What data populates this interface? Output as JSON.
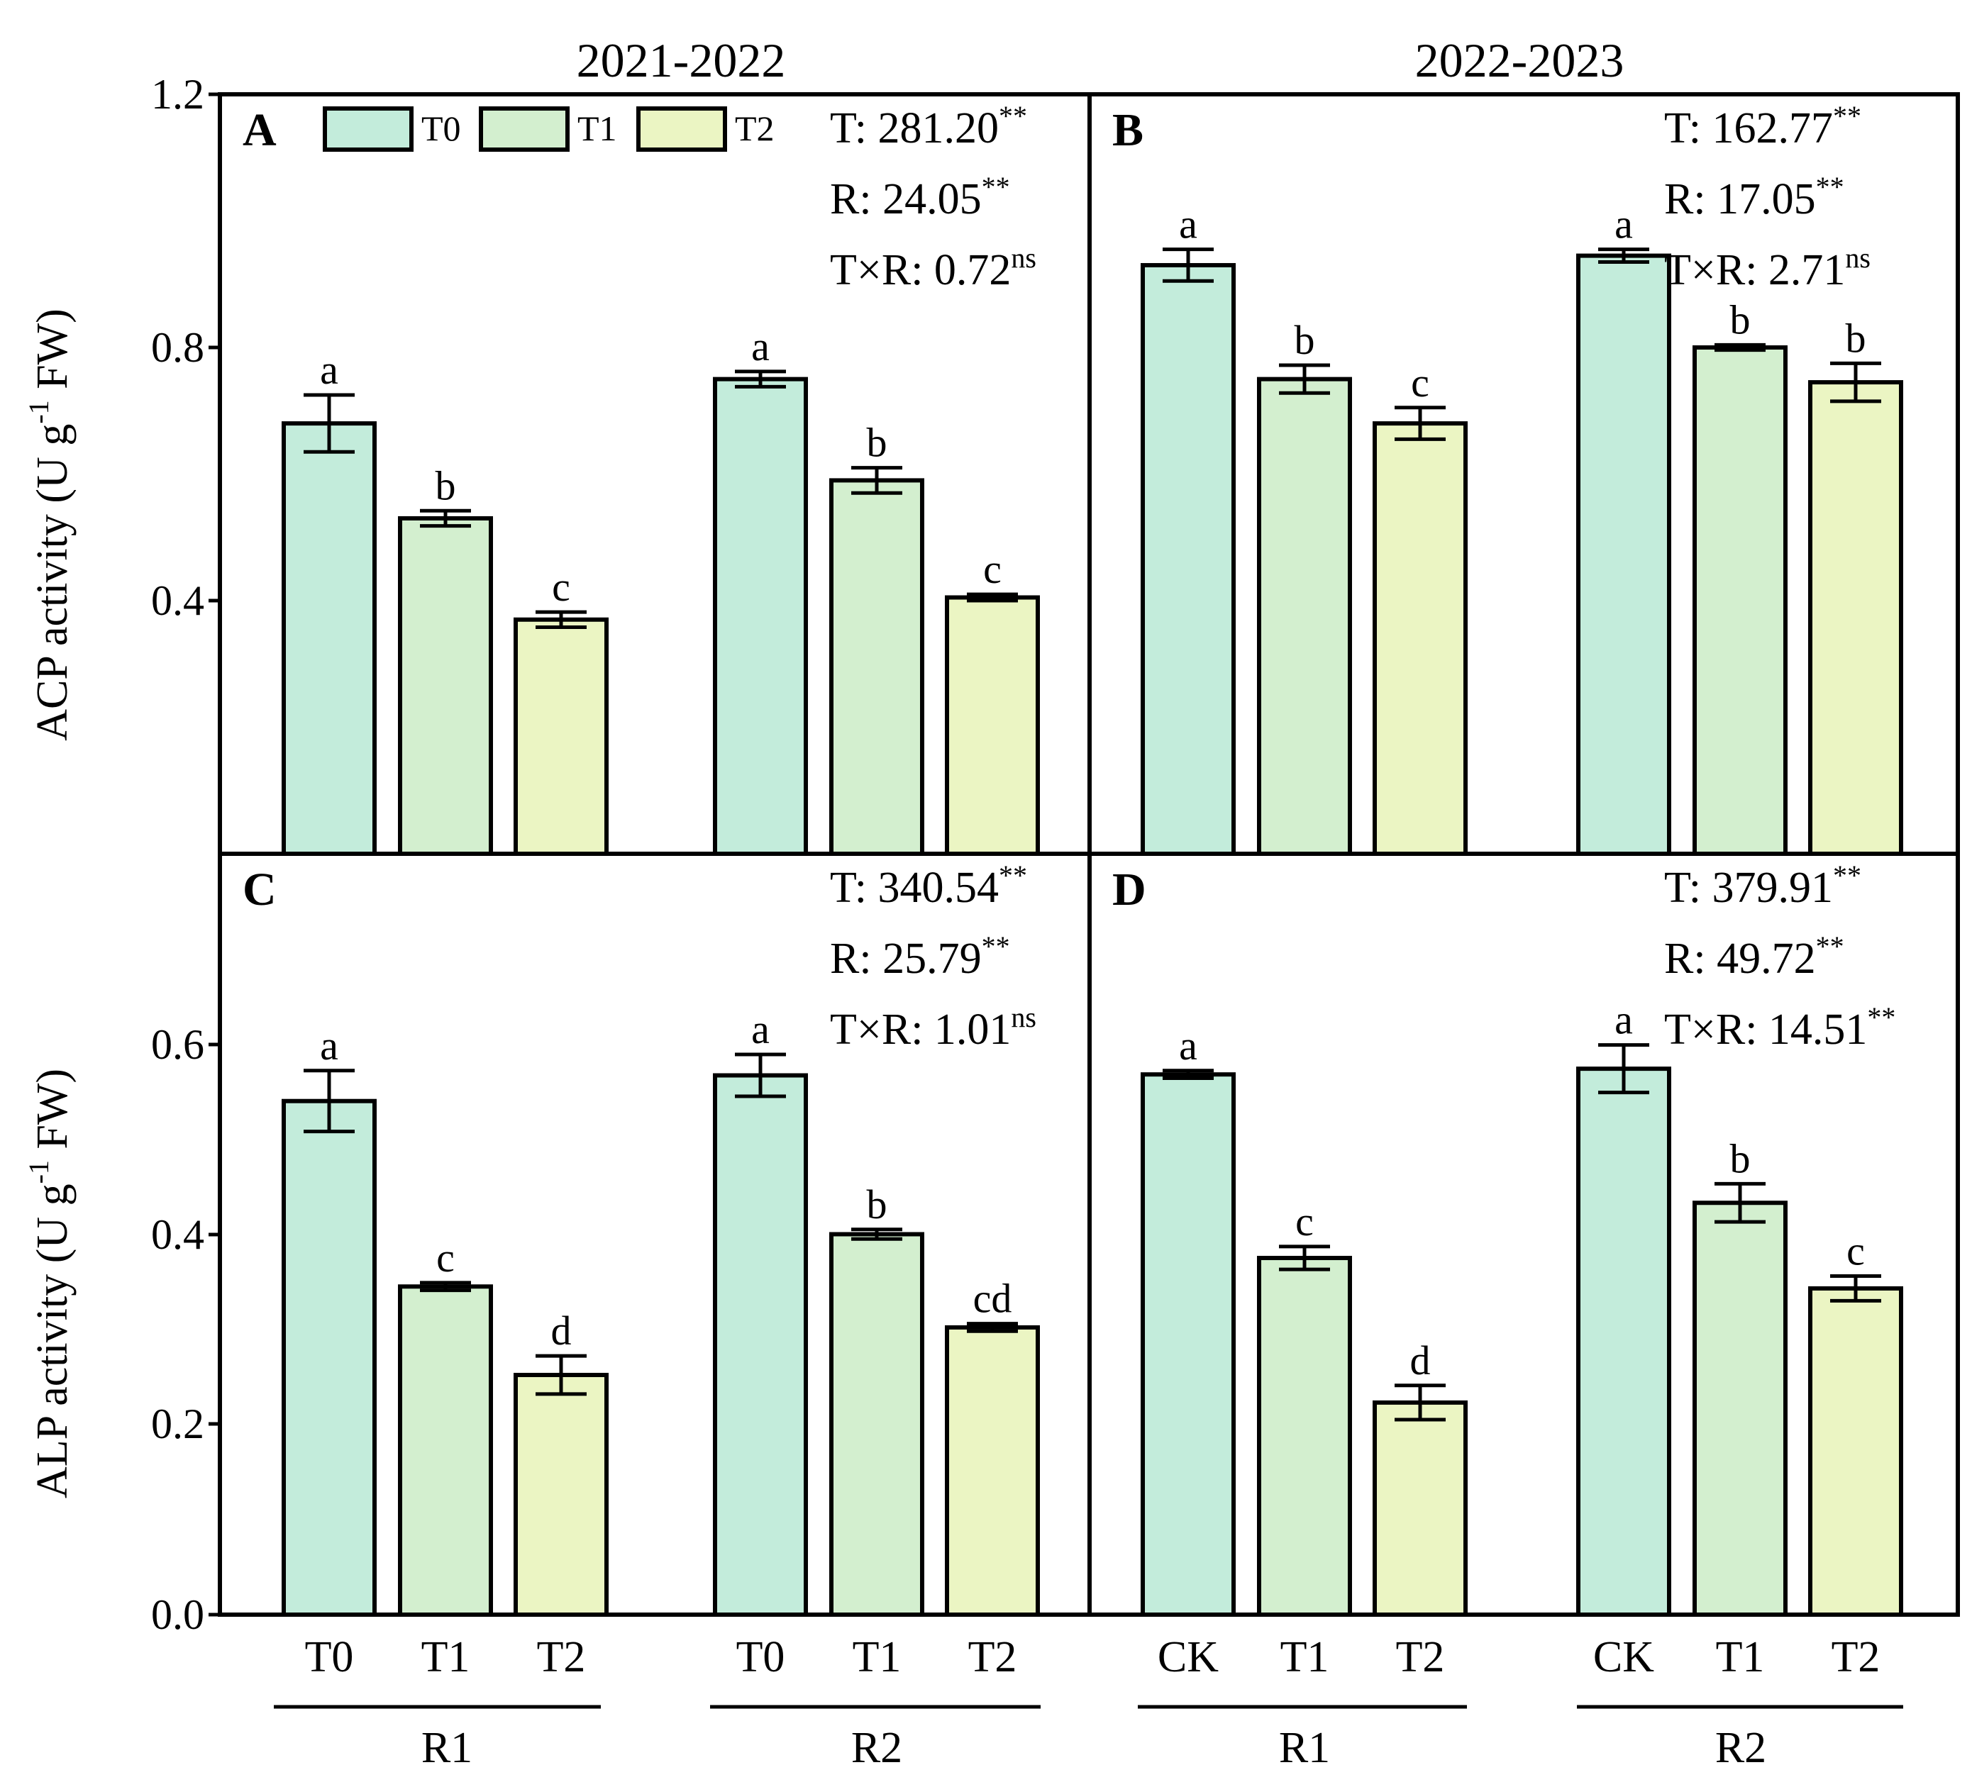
{
  "figure": {
    "column_titles": [
      "2021-2022",
      "2022-2023"
    ],
    "ylabels": {
      "top": {
        "prefix": "ACP activity (U g",
        "sup": "-1",
        "suffix": " FW)"
      },
      "bottom": {
        "prefix": "ALP activity (U g",
        "sup": "-1",
        "suffix": " FW)"
      }
    },
    "yticks": {
      "top": [
        "1.2",
        "0.8",
        "0.4"
      ],
      "bottom": [
        "0.6",
        "0.4",
        "0.2",
        "0.0"
      ]
    },
    "legend": {
      "items": [
        "T0",
        "T1",
        "T2"
      ]
    },
    "group_labels": [
      "R1",
      "R2"
    ]
  },
  "colors": {
    "T0": "#c3ecdb",
    "T1": "#d3efcf",
    "T2": "#ebf5c3",
    "edge": "#000000"
  },
  "chart_data": [
    {
      "panel": "A",
      "type": "bar",
      "ylim": [
        0.0,
        1.2
      ],
      "ylabel": "ACP activity (U g-1 FW)",
      "categories": [
        "T0",
        "T1",
        "T2",
        "T0",
        "T1",
        "T2"
      ],
      "groups": [
        "R1",
        "R2"
      ],
      "values": [
        0.68,
        0.53,
        0.37,
        0.75,
        0.59,
        0.405
      ],
      "errors": [
        0.045,
        0.012,
        0.012,
        0.012,
        0.02,
        0.005
      ],
      "letters": [
        "a",
        "b",
        "c",
        "a",
        "b",
        "c"
      ],
      "stats": [
        {
          "label": "T: 281.20",
          "sig": "**"
        },
        {
          "label": "R: 24.05",
          "sig": "**"
        },
        {
          "label": "T×R: 0.72",
          "sig": "ns"
        }
      ]
    },
    {
      "panel": "B",
      "type": "bar",
      "ylim": [
        0.0,
        1.2
      ],
      "ylabel": "ACP activity (U g-1 FW)",
      "categories": [
        "CK",
        "T1",
        "T2",
        "CK",
        "T1",
        "T2"
      ],
      "groups": [
        "R1",
        "R2"
      ],
      "values": [
        0.93,
        0.75,
        0.68,
        0.945,
        0.8,
        0.745
      ],
      "errors": [
        0.025,
        0.022,
        0.025,
        0.01,
        0.004,
        0.03
      ],
      "letters": [
        "a",
        "b",
        "c",
        "a",
        "b",
        "b"
      ],
      "stats": [
        {
          "label": "T: 162.77",
          "sig": "**"
        },
        {
          "label": "R: 17.05",
          "sig": "**"
        },
        {
          "label": "T×R: 2.71",
          "sig": "ns"
        }
      ]
    },
    {
      "panel": "C",
      "type": "bar",
      "ylim": [
        0.0,
        0.8
      ],
      "ylabel": "ALP activity (U g-1 FW)",
      "categories": [
        "T0",
        "T1",
        "T2",
        "T0",
        "T1",
        "T2"
      ],
      "groups": [
        "R1",
        "R2"
      ],
      "values": [
        0.54,
        0.345,
        0.252,
        0.567,
        0.4,
        0.302
      ],
      "errors": [
        0.032,
        0.004,
        0.02,
        0.022,
        0.005,
        0.004
      ],
      "letters": [
        "a",
        "c",
        "d",
        "a",
        "b",
        "cd"
      ],
      "stats": [
        {
          "label": "T: 340.54",
          "sig": "**"
        },
        {
          "label": "R: 25.79",
          "sig": "**"
        },
        {
          "label": "T×R: 1.01",
          "sig": "ns"
        }
      ]
    },
    {
      "panel": "D",
      "type": "bar",
      "ylim": [
        0.0,
        0.8
      ],
      "ylabel": "ALP activity (U g-1 FW)",
      "categories": [
        "CK",
        "T1",
        "T2",
        "CK",
        "T1",
        "T2"
      ],
      "groups": [
        "R1",
        "R2"
      ],
      "values": [
        0.568,
        0.375,
        0.223,
        0.574,
        0.433,
        0.343
      ],
      "errors": [
        0.004,
        0.012,
        0.018,
        0.025,
        0.02,
        0.013
      ],
      "letters": [
        "a",
        "c",
        "d",
        "a",
        "b",
        "c"
      ],
      "stats": [
        {
          "label": "T: 379.91",
          "sig": "**"
        },
        {
          "label": "R: 49.72",
          "sig": "**"
        },
        {
          "label": "T×R: 14.51",
          "sig": "**"
        }
      ]
    }
  ]
}
